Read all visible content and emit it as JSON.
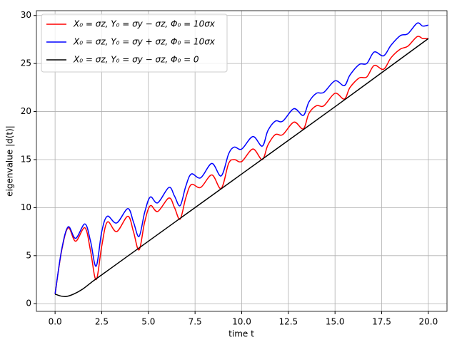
{
  "chart_data": {
    "type": "line",
    "xlabel": "time t",
    "ylabel": "eigenvalue |d(t)|",
    "xlim": [
      -1,
      21
    ],
    "ylim": [
      -0.8,
      30.5
    ],
    "xticks": [
      {
        "value": 0,
        "label": "0.0"
      },
      2.5,
      {
        "value": 5,
        "label": "5.0"
      },
      7.5,
      {
        "value": 10,
        "label": "10.0"
      },
      12.5,
      {
        "value": 15,
        "label": "15.0"
      },
      17.5,
      {
        "value": 20,
        "label": "20.0"
      }
    ],
    "yticks": [
      0,
      5,
      10,
      15,
      20,
      25,
      30
    ],
    "grid": true,
    "legend": "upper left",
    "series": [
      {
        "name": "X₀ = σz, Y₀ = σy − σz, Φ₀ = 10σx",
        "color": "#ff0000",
        "x": [
          0,
          0.35,
          0.7,
          1.1,
          1.6,
          1.9,
          2.2,
          2.5,
          2.8,
          3.3,
          3.9,
          4.2,
          4.5,
          4.8,
          5.1,
          5.5,
          6.1,
          6.4,
          6.7,
          7.0,
          7.3,
          7.8,
          8.4,
          8.9,
          9.3,
          9.6,
          10.0,
          10.6,
          11.1,
          11.4,
          11.8,
          12.2,
          12.8,
          13.3,
          13.6,
          14.0,
          14.4,
          15.0,
          15.5,
          15.8,
          16.3,
          16.7,
          17.1,
          17.6,
          18.0,
          18.5,
          18.9,
          19.4,
          19.7,
          20
        ],
        "values": [
          1,
          5.5,
          7.9,
          6.5,
          7.9,
          5.5,
          2.5,
          6,
          8.5,
          7.5,
          9.1,
          7.5,
          5.6,
          8.5,
          10.2,
          9.6,
          11.0,
          10,
          8.8,
          11,
          12.4,
          12.1,
          13.4,
          12,
          14.6,
          15.0,
          14.8,
          16.1,
          15.0,
          16.5,
          17.6,
          17.6,
          18.9,
          18.2,
          19.8,
          20.6,
          20.6,
          21.9,
          21.3,
          22.5,
          23.5,
          23.6,
          24.8,
          24.4,
          25.6,
          26.5,
          26.8,
          27.8,
          27.6,
          27.6
        ]
      },
      {
        "name": "X₀ = σz, Y₀ = σy + σz, Φ₀ = 10σx",
        "color": "#0000ff",
        "x": [
          0,
          0.35,
          0.7,
          1.1,
          1.6,
          1.9,
          2.2,
          2.5,
          2.8,
          3.3,
          3.9,
          4.2,
          4.5,
          4.8,
          5.1,
          5.5,
          6.1,
          6.4,
          6.7,
          7.0,
          7.3,
          7.8,
          8.4,
          8.9,
          9.3,
          9.6,
          10.0,
          10.6,
          11.1,
          11.4,
          11.8,
          12.2,
          12.8,
          13.3,
          13.6,
          14.0,
          14.4,
          15.0,
          15.5,
          15.8,
          16.3,
          16.7,
          17.1,
          17.6,
          18.0,
          18.5,
          18.9,
          19.4,
          19.7,
          20
        ],
        "values": [
          1,
          5.6,
          8.0,
          6.8,
          8.3,
          6.5,
          3.9,
          7.5,
          9.1,
          8.4,
          9.9,
          8.5,
          7.0,
          9.5,
          11.1,
          10.5,
          12.1,
          11.2,
          10.2,
          12.2,
          13.5,
          13.1,
          14.6,
          13.3,
          15.6,
          16.3,
          16.1,
          17.4,
          16.4,
          18,
          19.0,
          19.0,
          20.3,
          19.6,
          21,
          21.9,
          22.0,
          23.2,
          22.7,
          23.8,
          24.9,
          25.0,
          26.2,
          25.8,
          26.9,
          27.9,
          28.1,
          29.2,
          28.9,
          29.0
        ]
      },
      {
        "name": "X₀ = σz, Y₀ = σy − σz, Φ₀ = 0",
        "color": "#000000",
        "x": [
          0,
          0.3,
          0.6,
          1.0,
          1.5,
          2.0,
          2.5,
          3,
          5,
          10,
          15,
          20
        ],
        "values": [
          1,
          0.8,
          0.75,
          1.0,
          1.55,
          2.3,
          3.0,
          3.7,
          6.5,
          13.5,
          20.5,
          27.6
        ]
      }
    ]
  }
}
